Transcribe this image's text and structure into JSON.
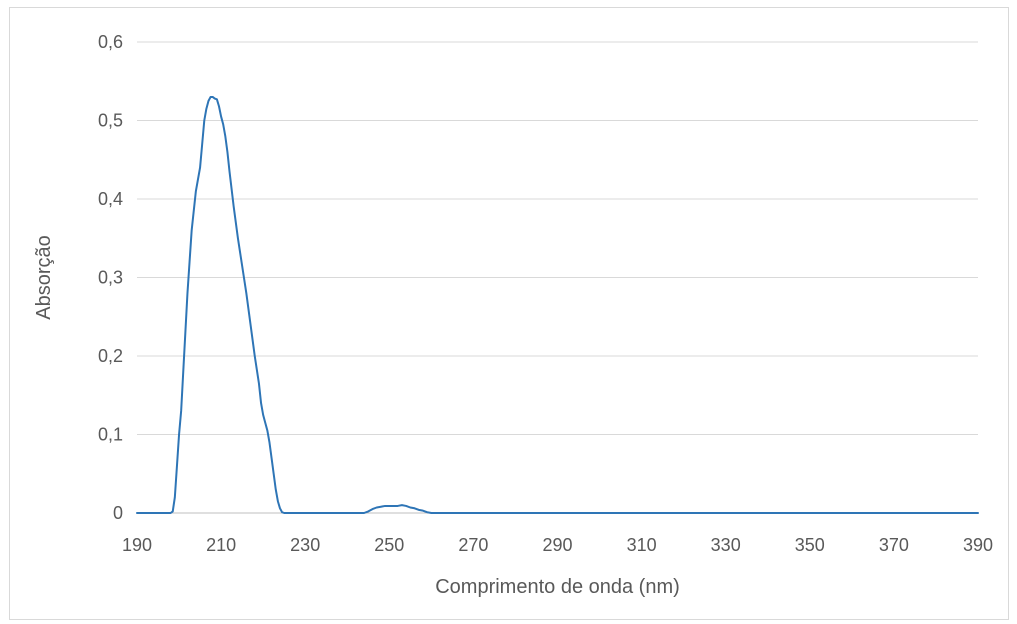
{
  "chart_data": {
    "type": "line",
    "title": "",
    "xlabel": "Comprimento de onda (nm)",
    "ylabel": "Absorção",
    "xlim": [
      190,
      390
    ],
    "ylim": [
      0,
      0.6
    ],
    "x_ticks": [
      190,
      210,
      230,
      250,
      270,
      290,
      310,
      330,
      350,
      370,
      390
    ],
    "x_tick_labels": [
      "190",
      "210",
      "230",
      "250",
      "270",
      "290",
      "310",
      "330",
      "350",
      "370",
      "390"
    ],
    "y_ticks": [
      0,
      0.1,
      0.2,
      0.3,
      0.4,
      0.5,
      0.6
    ],
    "y_tick_labels": [
      "0",
      "0,1",
      "0,2",
      "0,3",
      "0,4",
      "0,5",
      "0,6"
    ],
    "grid": "horizontal",
    "legend": "none",
    "series": [
      {
        "color": "#2e75b6",
        "x": [
          190,
          198,
          198.5,
          199,
          199.5,
          200,
          200.5,
          201,
          201.5,
          202,
          202.5,
          203,
          204,
          205,
          205.5,
          206,
          206.5,
          207,
          207.5,
          208,
          208.5,
          209,
          209.5,
          210,
          210.5,
          211,
          211.5,
          212,
          213,
          214,
          215,
          216,
          217,
          218,
          219,
          219.5,
          220,
          220.5,
          221,
          221.5,
          222,
          222.5,
          223,
          223.5,
          224,
          224.5,
          225,
          226,
          244,
          245,
          246,
          247,
          248,
          249,
          250,
          251,
          252,
          253,
          254,
          255,
          256,
          257,
          258,
          259,
          260,
          390
        ],
        "y": [
          0,
          0,
          0.002,
          0.02,
          0.06,
          0.1,
          0.13,
          0.18,
          0.23,
          0.28,
          0.32,
          0.36,
          0.41,
          0.44,
          0.47,
          0.5,
          0.515,
          0.525,
          0.53,
          0.53,
          0.528,
          0.527,
          0.518,
          0.505,
          0.495,
          0.48,
          0.46,
          0.435,
          0.39,
          0.35,
          0.315,
          0.28,
          0.24,
          0.2,
          0.165,
          0.14,
          0.125,
          0.115,
          0.105,
          0.09,
          0.07,
          0.05,
          0.03,
          0.015,
          0.006,
          0.001,
          0,
          0,
          0,
          0.002,
          0.005,
          0.007,
          0.008,
          0.009,
          0.009,
          0.009,
          0.009,
          0.01,
          0.009,
          0.007,
          0.006,
          0.004,
          0.003,
          0.001,
          0,
          0
        ]
      }
    ]
  }
}
